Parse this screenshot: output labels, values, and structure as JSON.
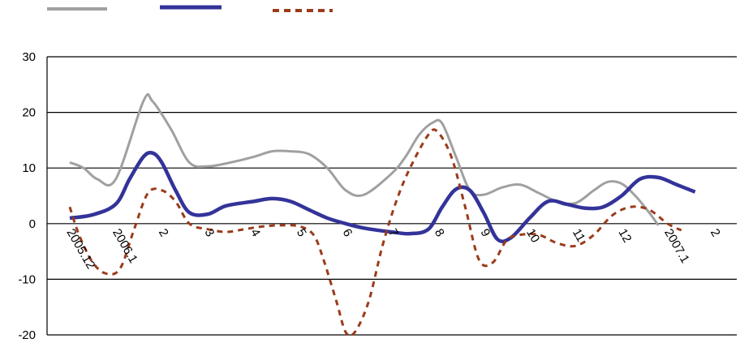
{
  "chart_data": {
    "type": "line",
    "x_labels": [
      "2005.12",
      "2006.1",
      "2",
      "3",
      "4",
      "5",
      "6",
      "7",
      "8",
      "9",
      "10",
      "11",
      "12",
      "2007.1",
      "2"
    ],
    "ylim": [
      -20,
      30
    ],
    "yticks": [
      30,
      20,
      10,
      0,
      -10,
      -20
    ],
    "yticks_labels": [
      "30",
      "20",
      "10",
      "0",
      "-10",
      "-20"
    ],
    "grid": "horizontal",
    "legend": "top-left",
    "series": [
      {
        "color": "#a0a0a0",
        "style": "solid",
        "points": [
          [
            0,
            11
          ],
          [
            0.3,
            10
          ],
          [
            0.6,
            8
          ],
          [
            1,
            8
          ],
          [
            1.6,
            22
          ],
          [
            1.8,
            22
          ],
          [
            2.2,
            17
          ],
          [
            2.6,
            11
          ],
          [
            3,
            10.3
          ],
          [
            3.5,
            11
          ],
          [
            4,
            12
          ],
          [
            4.4,
            13
          ],
          [
            4.8,
            13
          ],
          [
            5.2,
            12.5
          ],
          [
            5.6,
            10
          ],
          [
            6,
            6
          ],
          [
            6.4,
            5.2
          ],
          [
            7,
            9
          ],
          [
            7.3,
            12
          ],
          [
            7.6,
            16
          ],
          [
            7.9,
            18.2
          ],
          [
            8.1,
            18
          ],
          [
            8.4,
            12
          ],
          [
            8.7,
            6
          ],
          [
            9,
            5.2
          ],
          [
            9.4,
            6.5
          ],
          [
            9.8,
            7
          ],
          [
            10.2,
            5.5
          ],
          [
            10.6,
            4
          ],
          [
            11,
            3.7
          ],
          [
            11.4,
            6
          ],
          [
            11.7,
            7.5
          ],
          [
            12,
            7.2
          ],
          [
            12.3,
            5
          ],
          [
            12.6,
            2
          ],
          [
            12.8,
            -0.3
          ]
        ]
      },
      {
        "color": "#33339a",
        "style": "solid",
        "points": [
          [
            0,
            1
          ],
          [
            0.5,
            1.6
          ],
          [
            1,
            3.5
          ],
          [
            1.3,
            8
          ],
          [
            1.6,
            12
          ],
          [
            1.8,
            12.7
          ],
          [
            2,
            11
          ],
          [
            2.3,
            6
          ],
          [
            2.6,
            2
          ],
          [
            3,
            1.7
          ],
          [
            3.4,
            3.2
          ],
          [
            4,
            4
          ],
          [
            4.4,
            4.5
          ],
          [
            4.8,
            4
          ],
          [
            5.2,
            2.5
          ],
          [
            5.6,
            1
          ],
          [
            6,
            0
          ],
          [
            6.4,
            -0.8
          ],
          [
            7,
            -1.5
          ],
          [
            7.4,
            -1.8
          ],
          [
            7.8,
            -1
          ],
          [
            8.1,
            3
          ],
          [
            8.4,
            6.2
          ],
          [
            8.7,
            6
          ],
          [
            9,
            2
          ],
          [
            9.3,
            -2.8
          ],
          [
            9.6,
            -2.5
          ],
          [
            10,
            1
          ],
          [
            10.4,
            4
          ],
          [
            10.8,
            3.5
          ],
          [
            11.2,
            2.8
          ],
          [
            11.6,
            3
          ],
          [
            12,
            5
          ],
          [
            12.4,
            8
          ],
          [
            12.8,
            8.3
          ],
          [
            13.2,
            7
          ],
          [
            13.6,
            5.7
          ]
        ]
      },
      {
        "color": "#9b3b1a",
        "style": "dashed",
        "points": [
          [
            0,
            3
          ],
          [
            0.2,
            -2
          ],
          [
            0.5,
            -7
          ],
          [
            0.8,
            -9
          ],
          [
            1.1,
            -8
          ],
          [
            1.4,
            -1
          ],
          [
            1.7,
            5.5
          ],
          [
            2,
            6
          ],
          [
            2.3,
            4
          ],
          [
            2.6,
            0
          ],
          [
            3,
            -1
          ],
          [
            3.4,
            -1.5
          ],
          [
            3.8,
            -1
          ],
          [
            4.2,
            -0.5
          ],
          [
            4.6,
            -0.3
          ],
          [
            5,
            -0.5
          ],
          [
            5.3,
            -2
          ],
          [
            5.5,
            -6
          ],
          [
            5.8,
            -14
          ],
          [
            6,
            -19.5
          ],
          [
            6.2,
            -19.5
          ],
          [
            6.5,
            -14
          ],
          [
            6.8,
            -4
          ],
          [
            7.1,
            4
          ],
          [
            7.4,
            10
          ],
          [
            7.8,
            16
          ],
          [
            8,
            16.5
          ],
          [
            8.3,
            12
          ],
          [
            8.6,
            3
          ],
          [
            8.9,
            -6.5
          ],
          [
            9.2,
            -7
          ],
          [
            9.5,
            -3
          ],
          [
            9.8,
            -2
          ],
          [
            10.2,
            -2
          ],
          [
            10.6,
            -3.5
          ],
          [
            11,
            -4
          ],
          [
            11.4,
            -2
          ],
          [
            11.8,
            1.5
          ],
          [
            12.2,
            3
          ],
          [
            12.6,
            2.5
          ],
          [
            13,
            0
          ],
          [
            13.3,
            -1.2
          ]
        ]
      }
    ]
  }
}
